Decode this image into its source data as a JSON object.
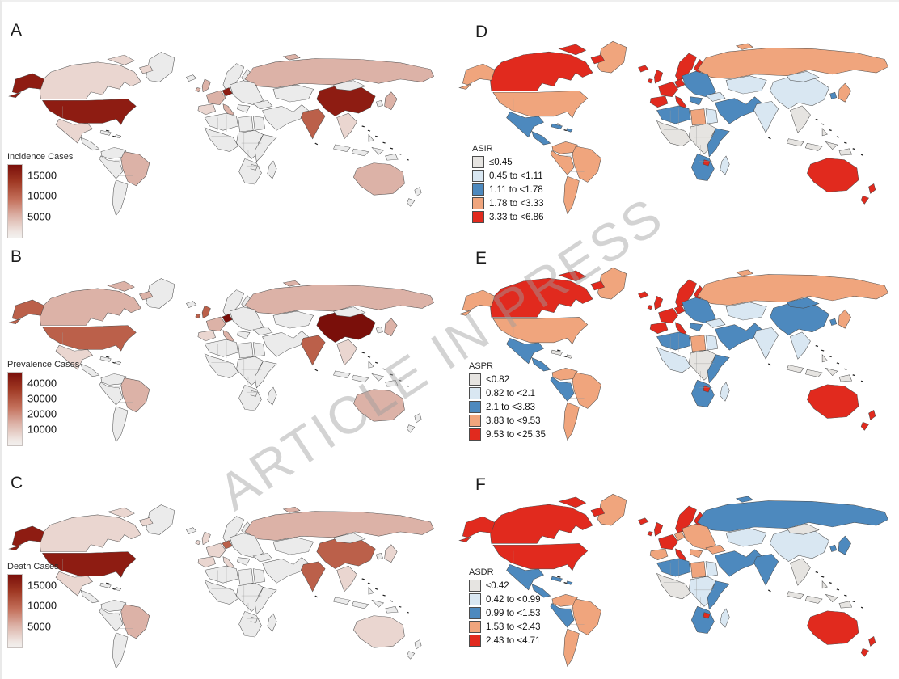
{
  "figure": {
    "watermark": "ARTICLE IN PRESS"
  },
  "chart_data": {
    "type": "heatmap",
    "subtype": "choropleth-world-map-small-multiples",
    "layout": "3 rows x 2 columns; panels A,B,C (left, sequential red scales) and D,E,F (right, 5-class diverging scales); legends bottom-left of each map; grid off; white ocean",
    "palette": {
      "g_vdark": "#7a0f0a",
      "g_dark": "#8e1c12",
      "g_mid": "#bb604a",
      "g_light": "#dcb2a7",
      "g_pale": "#ead6d0",
      "nodata": "#ebebeb",
      "gray": "#e6e4e1",
      "lblue": "#d9e7f2",
      "blue": "#4d89be",
      "salmon": "#f0a57d",
      "red": "#e12a1e"
    },
    "panels": [
      {
        "letter": "A",
        "metric": "Incidence Cases",
        "legend_type": "gradient",
        "legend_title": "Incidence Cases",
        "gradient_ticks": [
          "15000",
          "10000",
          "5000"
        ],
        "regions": {
          "default": "nodata",
          "alaska": "g_dark",
          "usa": "g_dark",
          "canada": "g_pale",
          "mexico": "g_pale",
          "brazil": "g_light",
          "uk": "g_light",
          "weurope": "g_light",
          "iberia": "g_pale",
          "germany": "g_dark",
          "russia": "g_light",
          "india": "g_mid",
          "china": "g_dark",
          "seasia": "g_pale",
          "japan": "g_light",
          "australia": "g_light"
        }
      },
      {
        "letter": "D",
        "metric": "ASIR",
        "legend_type": "categorical",
        "legend_title": "ASIR",
        "categories": [
          {
            "label": "≤0.45",
            "key": "gray"
          },
          {
            "label": "0.45 to <1.11",
            "key": "lblue"
          },
          {
            "label": "1.11 to <1.78",
            "key": "blue"
          },
          {
            "label": "1.78 to <3.33",
            "key": "salmon"
          },
          {
            "label": "3.33 to <6.86",
            "key": "red"
          }
        ],
        "regions": {
          "default": "gray",
          "greenland": "salmon",
          "alaska": "salmon",
          "usa": "salmon",
          "canada": "red",
          "mexico": "blue",
          "camerica": "blue",
          "carib": "blue",
          "vencol": "salmon",
          "brazil": "salmon",
          "andes": "salmon",
          "argentina": "salmon",
          "uk": "red",
          "iceland": "red",
          "scand": "red",
          "germany": "red",
          "weurope": "red",
          "iberia": "red",
          "eeurope": "blue",
          "russia": "salmon",
          "kazakh": "lblue",
          "turkey": "lblue",
          "mideast": "blue",
          "maghreb": "blue",
          "libya": "salmon",
          "egypt": "lblue",
          "wafrica": "gray",
          "cafrica": "gray",
          "eafrica": "blue",
          "safrica": "blue",
          "zimb": "red",
          "madag": "lblue",
          "india": "lblue",
          "china": "lblue",
          "mongolia": "lblue",
          "seasia": "gray",
          "indonesia": "gray",
          "japan": "salmon",
          "korea": "blue",
          "australia": "red",
          "nz": "red",
          "png": "gray"
        }
      },
      {
        "letter": "B",
        "metric": "Prevalence Cases",
        "legend_type": "gradient",
        "legend_title": "Prevalence Cases",
        "gradient_ticks": [
          "40000",
          "30000",
          "20000",
          "10000"
        ],
        "regions": {
          "default": "nodata",
          "alaska": "g_mid",
          "usa": "g_mid",
          "canada": "g_light",
          "mexico": "g_pale",
          "brazil": "g_light",
          "uk": "g_mid",
          "germany": "g_vdark",
          "weurope": "g_light",
          "iberia": "g_pale",
          "russia": "g_light",
          "india": "g_mid",
          "china": "g_vdark",
          "seasia": "g_pale",
          "japan": "g_light",
          "australia": "g_light"
        }
      },
      {
        "letter": "E",
        "metric": "ASPR",
        "legend_type": "categorical",
        "legend_title": "ASPR",
        "categories": [
          {
            "label": "<0.82",
            "key": "gray"
          },
          {
            "label": "0.82 to <2.1",
            "key": "lblue"
          },
          {
            "label": "2.1 to <3.83",
            "key": "blue"
          },
          {
            "label": "3.83 to <9.53",
            "key": "salmon"
          },
          {
            "label": "9.53 to <25.35",
            "key": "red"
          }
        ],
        "regions": {
          "default": "gray",
          "greenland": "salmon",
          "alaska": "salmon",
          "usa": "salmon",
          "canada": "red",
          "mexico": "blue",
          "camerica": "blue",
          "vencol": "salmon",
          "brazil": "salmon",
          "andes": "blue",
          "argentina": "salmon",
          "uk": "red",
          "iceland": "red",
          "scand": "red",
          "germany": "red",
          "weurope": "red",
          "iberia": "red",
          "eeurope": "blue",
          "russia": "salmon",
          "kazakh": "lblue",
          "turkey": "lblue",
          "mideast": "blue",
          "maghreb": "blue",
          "libya": "salmon",
          "egypt": "lblue",
          "wafrica": "lblue",
          "cafrica": "gray",
          "eafrica": "blue",
          "safrica": "blue",
          "zimb": "red",
          "madag": "lblue",
          "india": "lblue",
          "china": "blue",
          "mongolia": "blue",
          "seasia": "lblue",
          "indonesia": "gray",
          "japan": "salmon",
          "korea": "blue",
          "australia": "red",
          "nz": "red",
          "png": "gray"
        }
      },
      {
        "letter": "C",
        "metric": "Death Cases",
        "legend_type": "gradient",
        "legend_title": "Death Cases",
        "gradient_ticks": [
          "15000",
          "10000",
          "5000"
        ],
        "regions": {
          "default": "nodata",
          "alaska": "g_dark",
          "usa": "g_dark",
          "canada": "g_pale",
          "mexico": "g_pale",
          "brazil": "g_light",
          "uk": "g_pale",
          "germany": "g_mid",
          "weurope": "g_pale",
          "iberia": "g_pale",
          "russia": "g_light",
          "india": "g_mid",
          "china": "g_mid",
          "seasia": "g_pale",
          "japan": "g_pale",
          "australia": "g_pale"
        }
      },
      {
        "letter": "F",
        "metric": "ASDR",
        "legend_type": "categorical",
        "legend_title": "ASDR",
        "categories": [
          {
            "label": "≤0.42",
            "key": "gray"
          },
          {
            "label": "0.42 to <0.99",
            "key": "lblue"
          },
          {
            "label": "0.99 to <1.53",
            "key": "blue"
          },
          {
            "label": "1.53 to <2.43",
            "key": "salmon"
          },
          {
            "label": "2.43 to <4.71",
            "key": "red"
          }
        ],
        "regions": {
          "default": "gray",
          "greenland": "salmon",
          "alaska": "red",
          "usa": "red",
          "canada": "red",
          "mexico": "blue",
          "camerica": "blue",
          "carib": "blue",
          "vencol": "salmon",
          "brazil": "salmon",
          "andes": "blue",
          "argentina": "salmon",
          "uk": "red",
          "iceland": "red",
          "scand": "red",
          "germany": "salmon",
          "weurope": "red",
          "iberia": "salmon",
          "eeurope": "salmon",
          "russia": "blue",
          "kazakh": "lblue",
          "turkey": "salmon",
          "mideast": "blue",
          "maghreb": "blue",
          "libya": "salmon",
          "egypt": "lblue",
          "wafrica": "gray",
          "cafrica": "lblue",
          "eafrica": "blue",
          "safrica": "blue",
          "zimb": "red",
          "madag": "lblue",
          "india": "blue",
          "china": "lblue",
          "mongolia": "gray",
          "seasia": "gray",
          "indonesia": "gray",
          "japan": "blue",
          "korea": "blue",
          "australia": "red",
          "nz": "red",
          "png": "gray"
        }
      }
    ]
  }
}
